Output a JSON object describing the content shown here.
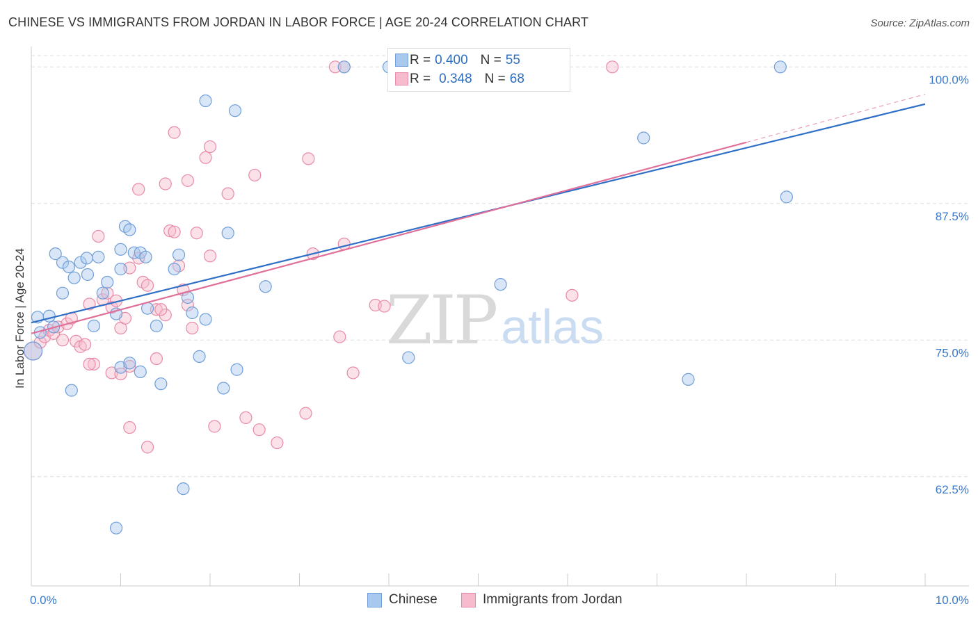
{
  "header": {
    "title": "CHINESE VS IMMIGRANTS FROM JORDAN IN LABOR FORCE | AGE 20-24 CORRELATION CHART",
    "source": "Source: ZipAtlas.com"
  },
  "watermark": {
    "part1": "ZIP",
    "part2": "atlas"
  },
  "legend": {
    "rows": [
      {
        "r_label": "R = ",
        "r_value": "0.400",
        "n_label": "N = ",
        "n_value": "55"
      },
      {
        "r_label": "R = ",
        "r_value": "0.348",
        "n_label": "N = ",
        "n_value": "68"
      }
    ]
  },
  "bottom_legend": {
    "series1": "Chinese",
    "series2": "Immigrants from Jordan"
  },
  "colors": {
    "chinese_fill": "#a9c8ee",
    "chinese_stroke": "#6f9ed8",
    "chinese_line": "#2f6fc8",
    "jordan_fill": "#f6bccd",
    "jordan_stroke": "#e88aa8",
    "jordan_line": "#e0709a",
    "grid": "#dddddd",
    "tick_text": "#3a78c8"
  },
  "chart_data": {
    "type": "scatter",
    "title": "CHINESE VS IMMIGRANTS FROM JORDAN IN LABOR FORCE | AGE 20-24 CORRELATION CHART",
    "xlabel": "",
    "ylabel": "In Labor Force | Age 20-24",
    "xlim": [
      0,
      10
    ],
    "ylim": [
      52.5,
      102.5
    ],
    "x_tick_labels": [
      {
        "value": 0,
        "label": "0.0%"
      },
      {
        "value": 10,
        "label": "10.0%"
      }
    ],
    "y_ticks": [
      {
        "value": 62.5,
        "label": "62.5%"
      },
      {
        "value": 75,
        "label": "75.0%"
      },
      {
        "value": 87.5,
        "label": "87.5%"
      },
      {
        "value": 100,
        "label": "100.0%"
      }
    ],
    "grid": true,
    "legend_position": "top-center",
    "series": [
      {
        "name": "Chinese",
        "stats": {
          "R": 0.4,
          "N": 55
        },
        "trend": {
          "x0": 0.0,
          "y0": 76.6,
          "x1": 10.0,
          "y1": 96.6
        },
        "points": [
          [
            0.07,
            77.1
          ],
          [
            0.2,
            77.2
          ],
          [
            0.25,
            76.2
          ],
          [
            0.1,
            75.7
          ],
          [
            0.02,
            74.0
          ],
          [
            0.35,
            82.1
          ],
          [
            0.55,
            82.1
          ],
          [
            0.27,
            82.9
          ],
          [
            0.62,
            82.5
          ],
          [
            0.75,
            82.6
          ],
          [
            0.63,
            81.0
          ],
          [
            0.48,
            80.7
          ],
          [
            0.42,
            81.7
          ],
          [
            0.85,
            80.3
          ],
          [
            1.0,
            81.5
          ],
          [
            1.0,
            83.3
          ],
          [
            1.15,
            83.0
          ],
          [
            1.22,
            83.0
          ],
          [
            1.28,
            82.6
          ],
          [
            1.05,
            85.4
          ],
          [
            1.1,
            85.1
          ],
          [
            1.65,
            82.8
          ],
          [
            1.6,
            81.5
          ],
          [
            1.75,
            78.9
          ],
          [
            1.8,
            77.5
          ],
          [
            1.95,
            76.9
          ],
          [
            0.8,
            79.3
          ],
          [
            0.35,
            79.3
          ],
          [
            0.95,
            77.4
          ],
          [
            1.3,
            77.9
          ],
          [
            1.4,
            76.3
          ],
          [
            0.7,
            76.3
          ],
          [
            0.45,
            70.4
          ],
          [
            1.0,
            72.5
          ],
          [
            1.1,
            72.9
          ],
          [
            1.22,
            72.1
          ],
          [
            1.45,
            71.0
          ],
          [
            1.88,
            73.5
          ],
          [
            2.15,
            70.6
          ],
          [
            2.3,
            72.3
          ],
          [
            2.2,
            84.8
          ],
          [
            2.62,
            79.9
          ],
          [
            4.22,
            73.4
          ],
          [
            5.25,
            80.1
          ],
          [
            7.35,
            71.4
          ],
          [
            1.95,
            96.9
          ],
          [
            2.28,
            96.0
          ],
          [
            3.5,
            100.0
          ],
          [
            4.0,
            100.0
          ],
          [
            4.5,
            100.0
          ],
          [
            6.85,
            93.5
          ],
          [
            8.45,
            88.1
          ],
          [
            8.38,
            100.0
          ],
          [
            1.7,
            61.4
          ],
          [
            0.95,
            57.8
          ]
        ]
      },
      {
        "name": "Immigrants from Jordan",
        "stats": {
          "R": 0.348,
          "N": 68
        },
        "trend": {
          "x0": 0.0,
          "y0": 75.6,
          "x1": 8.0,
          "y1": 93.1
        },
        "trend_dashed_to": {
          "x": 10.0,
          "y": 97.5
        },
        "points": [
          [
            0.02,
            74.0
          ],
          [
            0.1,
            74.8
          ],
          [
            0.15,
            75.3
          ],
          [
            0.2,
            75.9
          ],
          [
            0.25,
            75.6
          ],
          [
            0.3,
            76.2
          ],
          [
            0.35,
            75.0
          ],
          [
            0.4,
            76.5
          ],
          [
            0.45,
            77.0
          ],
          [
            0.5,
            74.9
          ],
          [
            0.55,
            74.4
          ],
          [
            0.6,
            74.6
          ],
          [
            0.65,
            78.3
          ],
          [
            0.7,
            72.8
          ],
          [
            0.65,
            72.8
          ],
          [
            0.75,
            84.5
          ],
          [
            0.8,
            78.7
          ],
          [
            0.85,
            79.3
          ],
          [
            0.9,
            78.0
          ],
          [
            0.95,
            78.6
          ],
          [
            0.9,
            72.0
          ],
          [
            1.0,
            71.9
          ],
          [
            1.0,
            76.1
          ],
          [
            1.05,
            77.0
          ],
          [
            1.1,
            72.6
          ],
          [
            1.1,
            81.6
          ],
          [
            1.2,
            82.5
          ],
          [
            1.25,
            80.3
          ],
          [
            1.3,
            80.0
          ],
          [
            1.4,
            77.8
          ],
          [
            1.4,
            73.3
          ],
          [
            1.5,
            77.3
          ],
          [
            1.45,
            77.8
          ],
          [
            1.55,
            85.0
          ],
          [
            1.6,
            84.9
          ],
          [
            1.65,
            81.8
          ],
          [
            1.7,
            79.6
          ],
          [
            1.75,
            78.2
          ],
          [
            1.8,
            76.1
          ],
          [
            1.85,
            84.8
          ],
          [
            1.2,
            88.8
          ],
          [
            1.5,
            89.3
          ],
          [
            1.75,
            89.6
          ],
          [
            1.6,
            94.0
          ],
          [
            1.95,
            91.7
          ],
          [
            2.0,
            92.7
          ],
          [
            2.2,
            88.4
          ],
          [
            2.5,
            90.1
          ],
          [
            2.0,
            82.7
          ],
          [
            1.1,
            67.0
          ],
          [
            1.3,
            65.2
          ],
          [
            2.05,
            67.1
          ],
          [
            2.4,
            67.9
          ],
          [
            2.55,
            66.8
          ],
          [
            2.75,
            65.6
          ],
          [
            3.07,
            68.3
          ],
          [
            3.1,
            91.6
          ],
          [
            3.15,
            82.9
          ],
          [
            3.5,
            83.8
          ],
          [
            3.45,
            75.3
          ],
          [
            3.6,
            72.0
          ],
          [
            3.85,
            78.2
          ],
          [
            3.95,
            78.1
          ],
          [
            3.4,
            100.0
          ],
          [
            3.5,
            100.0
          ],
          [
            4.55,
            100.0
          ],
          [
            6.5,
            100.0
          ],
          [
            6.05,
            79.1
          ]
        ]
      }
    ]
  }
}
